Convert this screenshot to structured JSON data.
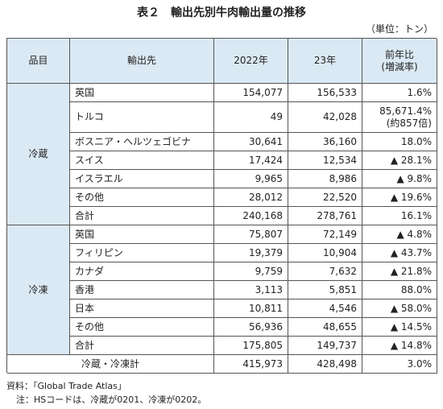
{
  "title": "表２　輸出先別牛肉輸出量の推移",
  "unit": "（単位：トン）",
  "table": {
    "headers": [
      "品目",
      "輸出先",
      "2022年",
      "23年",
      "前年比\n(増減率)"
    ],
    "groups": [
      {
        "name": "冷蔵",
        "rows": [
          [
            "英国",
            "154,077",
            "156,533",
            "1.6%"
          ],
          [
            "トルコ",
            "49",
            "42,028",
            "85,671.4%\n(約857倍)"
          ],
          [
            "ボスニア・ヘルツェゴビナ",
            "30,641",
            "36,160",
            "18.0%"
          ],
          [
            "スイス",
            "17,424",
            "12,534",
            "▲ 28.1%"
          ],
          [
            "イスラエル",
            "9,965",
            "8,986",
            "▲ 9.8%"
          ],
          [
            "その他",
            "28,012",
            "22,520",
            "▲ 19.6%"
          ],
          [
            "合計",
            "240,168",
            "278,761",
            "16.1%"
          ]
        ]
      },
      {
        "name": "冷凍",
        "rows": [
          [
            "英国",
            "75,807",
            "72,149",
            "▲ 4.8%"
          ],
          [
            "フィリピン",
            "19,379",
            "10,904",
            "▲ 43.7%"
          ],
          [
            "カナダ",
            "9,759",
            "7,632",
            "▲ 21.8%"
          ],
          [
            "香港",
            "3,113",
            "5,851",
            "88.0%"
          ],
          [
            "日本",
            "10,811",
            "4,546",
            "▲ 58.0%"
          ],
          [
            "その他",
            "56,936",
            "48,655",
            "▲ 14.5%"
          ],
          [
            "合計",
            "175,805",
            "149,737",
            "▲ 14.8%"
          ]
        ]
      }
    ],
    "grand_total": [
      "冷蔵・冷凍計",
      "415,973",
      "428,498",
      "3.0%"
    ]
  },
  "notes": [
    "資料：「Global Trade Atlas」",
    "注：HSコードは、冷蔵が0201、冷凍が0202。"
  ]
}
